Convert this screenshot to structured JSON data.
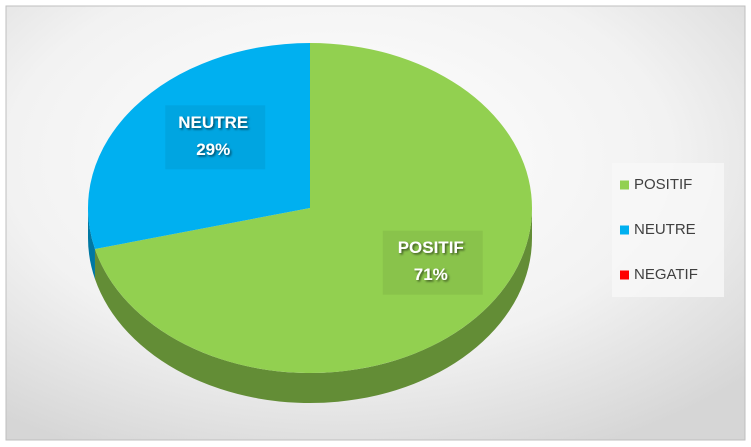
{
  "chart_data": {
    "type": "pie",
    "categories": [
      "POSITIF",
      "NEUTRE",
      "NEGATIF"
    ],
    "values": [
      71,
      29,
      0
    ],
    "value_labels": [
      "71%",
      "29%",
      null
    ],
    "colors": [
      "#92d050",
      "#00b0f0",
      "#ff0000"
    ],
    "legend": "right"
  }
}
